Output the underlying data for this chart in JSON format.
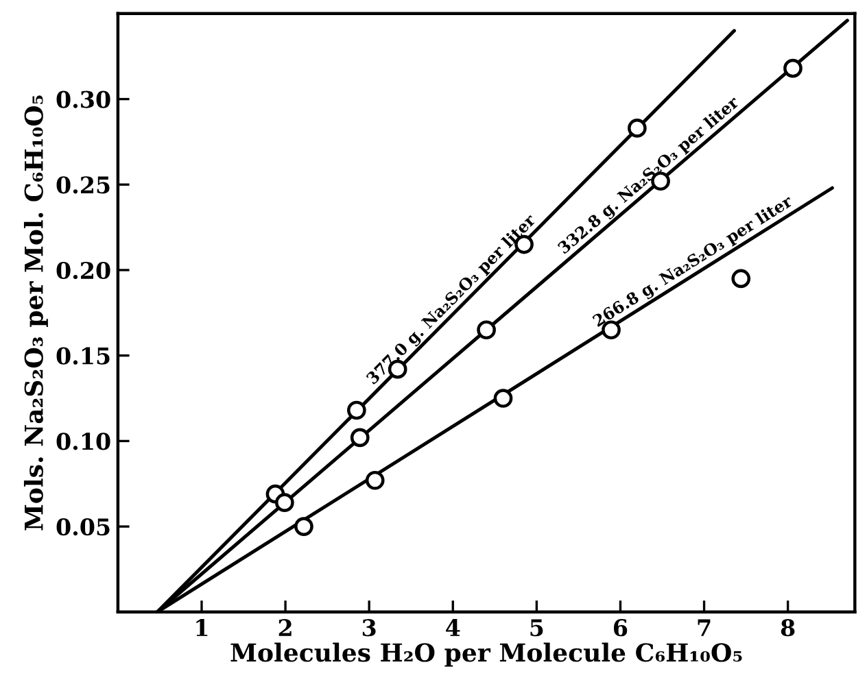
{
  "chart_data": {
    "type": "line",
    "xlabel": "Molecules H₂O per Molecule C₆H₁₀O₅",
    "ylabel": "Mols. Na₂S₂O₃ per Mol. C₆H₁₀O₅",
    "xlim": [
      0,
      8.8
    ],
    "ylim": [
      0,
      0.35
    ],
    "xticks": [
      1,
      2,
      3,
      4,
      5,
      6,
      7,
      8
    ],
    "yticks": [
      {
        "value": 0.05,
        "label": "0.05"
      },
      {
        "value": 0.1,
        "label": "0.10"
      },
      {
        "value": 0.15,
        "label": "0.15"
      },
      {
        "value": 0.2,
        "label": "0.20"
      },
      {
        "value": 0.25,
        "label": "0.25"
      },
      {
        "value": 0.3,
        "label": "0.30"
      }
    ],
    "grid": false,
    "legend": false,
    "series": [
      {
        "type": "line",
        "name": "377.0 g. Na₂S₂O₃ per liter",
        "color": "#000000",
        "marker": "none",
        "x": [
          0.47,
          7.36
        ],
        "values": [
          0,
          0.34
        ]
      },
      {
        "type": "line",
        "name": "332.8 g. Na₂S₂O₃ per liter",
        "color": "#000000",
        "marker": "none",
        "x": [
          0.47,
          8.71
        ],
        "values": [
          0,
          0.346
        ]
      },
      {
        "type": "line",
        "name": "266.8 g. Na₂S₂O₃ per liter",
        "color": "#000000",
        "marker": "none",
        "x": [
          0.47,
          8.53
        ],
        "values": [
          0,
          0.248
        ]
      },
      {
        "type": "scatter",
        "color": "#000000",
        "marker": "circle",
        "x": [
          1.88,
          2.85,
          3.34,
          4.85,
          6.2
        ],
        "values": [
          0.069,
          0.118,
          0.142,
          0.215,
          0.283
        ]
      },
      {
        "type": "scatter",
        "color": "#000000",
        "marker": "circle",
        "x": [
          1.99,
          2.89,
          4.4,
          6.48,
          8.06
        ],
        "values": [
          0.064,
          0.102,
          0.165,
          0.252,
          0.318
        ]
      },
      {
        "type": "scatter",
        "color": "#000000",
        "marker": "circle",
        "x": [
          2.22,
          3.07,
          4.6,
          5.89,
          7.44
        ],
        "values": [
          0.05,
          0.077,
          0.125,
          0.165,
          0.195
        ]
      }
    ]
  }
}
